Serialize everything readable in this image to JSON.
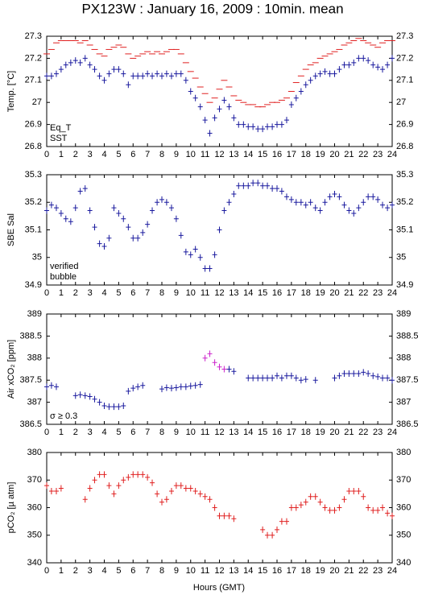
{
  "title": "PX123W : January 16, 2009 : 10min. mean",
  "xlabel": "Hours (GMT)",
  "chart_data": [
    {
      "type": "scatter",
      "ylabel": "Temp. [°C]",
      "legend": "lower left",
      "xlim": [
        0,
        24
      ],
      "xticks": [
        0,
        1,
        2,
        3,
        4,
        5,
        6,
        7,
        8,
        9,
        10,
        11,
        12,
        13,
        14,
        15,
        16,
        17,
        18,
        19,
        20,
        21,
        22,
        23,
        24
      ],
      "ylim": [
        26.8,
        27.3
      ],
      "yticks": [
        26.8,
        26.9,
        27,
        27.1,
        27.2,
        27.3
      ],
      "x": [
        0,
        0.33,
        0.67,
        1,
        1.33,
        1.67,
        2,
        2.33,
        2.67,
        3,
        3.33,
        3.67,
        4,
        4.33,
        4.67,
        5,
        5.33,
        5.67,
        6,
        6.33,
        6.67,
        7,
        7.33,
        7.67,
        8,
        8.33,
        8.67,
        9,
        9.33,
        9.67,
        10,
        10.33,
        10.67,
        11,
        11.33,
        11.67,
        12,
        12.33,
        12.67,
        13,
        13.33,
        13.67,
        14,
        14.33,
        14.67,
        15,
        15.33,
        15.67,
        16,
        16.33,
        16.67,
        17,
        17.33,
        17.67,
        18,
        18.33,
        18.67,
        19,
        19.33,
        19.67,
        20,
        20.33,
        20.67,
        21,
        21.33,
        21.67,
        22,
        22.33,
        22.67,
        23,
        23.33,
        23.67,
        24
      ],
      "series": [
        {
          "name": "Eq_T",
          "color": "#e02020",
          "marker": "dash",
          "values": [
            27.22,
            27.24,
            27.27,
            27.28,
            27.28,
            27.28,
            27.28,
            27.27,
            27.28,
            27.26,
            27.24,
            27.22,
            27.21,
            27.24,
            27.25,
            27.26,
            27.25,
            27.22,
            27.2,
            27.21,
            27.22,
            27.23,
            27.22,
            27.23,
            27.22,
            27.23,
            27.24,
            27.24,
            27.22,
            27.18,
            27.14,
            27.11,
            27.07,
            27.04,
            27.0,
            27.02,
            27.06,
            27.1,
            27.07,
            27.03,
            27.01,
            27.0,
            26.99,
            26.99,
            26.98,
            26.98,
            26.99,
            27.0,
            27.0,
            27.01,
            27.02,
            27.05,
            27.09,
            27.12,
            27.15,
            27.17,
            27.18,
            27.2,
            27.21,
            27.22,
            27.23,
            27.24,
            27.26,
            27.27,
            27.28,
            27.29,
            27.28,
            27.27,
            27.26,
            27.25,
            27.27,
            27.28,
            27.28
          ]
        },
        {
          "name": "SST",
          "color": "#1a1a9e",
          "marker": "plus",
          "values": [
            27.12,
            27.12,
            27.13,
            27.15,
            27.17,
            27.18,
            27.19,
            27.18,
            27.2,
            27.17,
            27.15,
            27.12,
            27.1,
            27.13,
            27.15,
            27.15,
            27.13,
            27.08,
            27.12,
            27.12,
            27.12,
            27.13,
            27.12,
            27.13,
            27.12,
            27.13,
            27.12,
            27.13,
            27.13,
            27.1,
            27.05,
            27.02,
            26.98,
            26.92,
            26.86,
            26.93,
            26.97,
            27.01,
            26.98,
            26.93,
            26.9,
            26.9,
            26.89,
            26.89,
            26.88,
            26.88,
            26.89,
            26.89,
            26.9,
            26.9,
            26.92,
            26.99,
            27.02,
            27.05,
            27.08,
            27.1,
            27.12,
            27.13,
            27.14,
            27.13,
            27.13,
            27.15,
            27.17,
            27.17,
            27.18,
            27.2,
            27.2,
            27.19,
            27.17,
            27.16,
            27.15,
            27.17,
            27.2
          ]
        }
      ]
    },
    {
      "type": "scatter",
      "ylabel": "SBE Sal",
      "legend": "lower left",
      "xlim": [
        0,
        24
      ],
      "xticks": [
        0,
        1,
        2,
        3,
        4,
        5,
        6,
        7,
        8,
        9,
        10,
        11,
        12,
        13,
        14,
        15,
        16,
        17,
        18,
        19,
        20,
        21,
        22,
        23,
        24
      ],
      "ylim": [
        34.9,
        35.3
      ],
      "yticks": [
        34.9,
        35,
        35.1,
        35.2,
        35.3
      ],
      "x": [
        0,
        0.33,
        0.67,
        1,
        1.33,
        1.67,
        2,
        2.33,
        2.67,
        3,
        3.33,
        3.67,
        4,
        4.33,
        4.67,
        5,
        5.33,
        5.67,
        6,
        6.33,
        6.67,
        7,
        7.33,
        7.67,
        8,
        8.33,
        8.67,
        9,
        9.33,
        9.67,
        10,
        10.33,
        10.67,
        11,
        11.33,
        11.67,
        12,
        12.33,
        12.67,
        13,
        13.33,
        13.67,
        14,
        14.33,
        14.67,
        15,
        15.33,
        15.67,
        16,
        16.33,
        16.67,
        17,
        17.33,
        17.67,
        18,
        18.33,
        18.67,
        19,
        19.33,
        19.67,
        20,
        20.33,
        20.67,
        21,
        21.33,
        21.67,
        22,
        22.33,
        22.67,
        23,
        23.33,
        23.67,
        24
      ],
      "series": [
        {
          "name": "verified",
          "color": "#1a1a9e",
          "marker": "plus",
          "values": [
            35.17,
            35.19,
            35.18,
            35.16,
            35.14,
            35.13,
            35.18,
            35.24,
            35.25,
            35.17,
            35.11,
            35.05,
            35.04,
            35.07,
            35.18,
            35.16,
            35.14,
            35.11,
            35.07,
            35.07,
            35.09,
            35.12,
            35.17,
            35.2,
            35.21,
            35.2,
            35.18,
            35.14,
            35.08,
            35.02,
            35.01,
            35.03,
            35.0,
            34.96,
            34.96,
            35.01,
            35.1,
            35.17,
            35.2,
            35.23,
            35.26,
            35.26,
            35.26,
            35.27,
            35.27,
            35.26,
            35.26,
            35.25,
            35.25,
            35.24,
            35.22,
            35.21,
            35.2,
            35.2,
            35.19,
            35.2,
            35.18,
            35.17,
            35.2,
            35.22,
            35.23,
            35.22,
            35.19,
            35.17,
            35.16,
            35.18,
            35.2,
            35.22,
            35.22,
            35.21,
            35.19,
            35.18,
            35.19
          ]
        },
        {
          "name": "bubble",
          "color": "#cc22cc",
          "marker": "plus",
          "values": [
            null,
            null,
            null,
            null,
            null,
            null,
            null,
            null,
            null,
            null,
            null,
            null,
            null,
            null,
            null,
            null,
            null,
            null,
            null,
            null,
            null,
            null,
            null,
            null,
            null,
            null,
            null,
            null,
            null,
            null,
            null,
            null,
            null,
            null,
            null,
            null,
            null,
            null,
            null,
            null,
            null,
            null,
            null,
            null,
            null,
            null,
            null,
            null,
            null,
            null,
            null,
            null,
            null,
            null,
            null,
            null,
            null,
            null,
            null,
            null,
            null,
            null,
            null,
            null,
            null,
            null,
            null,
            null,
            null,
            null,
            null,
            null,
            null
          ]
        }
      ]
    },
    {
      "type": "scatter",
      "ylabel": "Air xCO₂ [ppm]",
      "legend": "lower left",
      "xlim": [
        0,
        24
      ],
      "xticks": [
        0,
        1,
        2,
        3,
        4,
        5,
        6,
        7,
        8,
        9,
        10,
        11,
        12,
        13,
        14,
        15,
        16,
        17,
        18,
        19,
        20,
        21,
        22,
        23,
        24
      ],
      "ylim": [
        386.5,
        389
      ],
      "yticks": [
        386.5,
        387,
        387.5,
        388,
        388.5,
        389
      ],
      "x": [
        0,
        0.33,
        0.67,
        1,
        1.33,
        1.67,
        2,
        2.33,
        2.67,
        3,
        3.33,
        3.67,
        4,
        4.33,
        4.67,
        5,
        5.33,
        5.67,
        6,
        6.33,
        6.67,
        7,
        7.33,
        7.67,
        8,
        8.33,
        8.67,
        9,
        9.33,
        9.67,
        10,
        10.33,
        10.67,
        11,
        11.33,
        11.67,
        12,
        12.33,
        12.67,
        13,
        13.33,
        13.67,
        14,
        14.33,
        14.67,
        15,
        15.33,
        15.67,
        16,
        16.33,
        16.67,
        17,
        17.33,
        17.67,
        18,
        18.33,
        18.67,
        19,
        19.33,
        19.67,
        20,
        20.33,
        20.67,
        21,
        21.33,
        21.67,
        22,
        22.33,
        22.67,
        23,
        23.33,
        23.67,
        24
      ],
      "series": [
        {
          "color": "#1a1a9e",
          "marker": "plus",
          "values": [
            387.35,
            387.38,
            387.35,
            null,
            null,
            null,
            387.15,
            387.17,
            387.15,
            387.13,
            387.07,
            387.0,
            386.92,
            386.9,
            386.9,
            386.9,
            386.92,
            387.25,
            387.32,
            387.35,
            387.38,
            null,
            null,
            null,
            387.3,
            387.33,
            387.32,
            387.33,
            387.35,
            387.35,
            387.37,
            387.38,
            387.4,
            null,
            null,
            null,
            null,
            null,
            387.75,
            387.7,
            null,
            null,
            387.55,
            387.55,
            387.55,
            387.55,
            387.55,
            387.55,
            387.6,
            387.55,
            387.6,
            387.6,
            387.55,
            387.5,
            387.52,
            null,
            387.5,
            null,
            null,
            null,
            387.55,
            387.6,
            387.65,
            387.65,
            387.65,
            387.65,
            387.68,
            387.65,
            387.6,
            387.58,
            387.55,
            387.55,
            387.5
          ]
        },
        {
          "name": "σ ≥ 0.3",
          "color": "#cc22cc",
          "marker": "plus",
          "values": [
            null,
            null,
            null,
            null,
            null,
            null,
            null,
            null,
            null,
            null,
            null,
            null,
            null,
            null,
            null,
            null,
            null,
            null,
            null,
            null,
            null,
            null,
            null,
            null,
            null,
            null,
            null,
            null,
            null,
            null,
            null,
            null,
            null,
            388.0,
            388.1,
            387.9,
            387.8,
            387.75,
            null,
            null,
            null,
            null,
            null,
            null,
            null,
            null,
            null,
            null,
            null,
            null,
            null,
            null,
            null,
            null,
            null,
            null,
            null,
            null,
            null,
            null,
            null,
            null,
            null,
            null,
            null,
            null,
            null,
            null,
            null,
            null,
            null,
            null,
            null
          ]
        }
      ]
    },
    {
      "type": "scatter",
      "ylabel": "pCO₂ [µ atm]",
      "xlim": [
        0,
        24
      ],
      "xticks": [
        0,
        1,
        2,
        3,
        4,
        5,
        6,
        7,
        8,
        9,
        10,
        11,
        12,
        13,
        14,
        15,
        16,
        17,
        18,
        19,
        20,
        21,
        22,
        23,
        24
      ],
      "ylim": [
        340,
        380
      ],
      "yticks": [
        340,
        350,
        360,
        370,
        380
      ],
      "x": [
        0,
        0.33,
        0.67,
        1,
        1.33,
        1.67,
        2,
        2.33,
        2.67,
        3,
        3.33,
        3.67,
        4,
        4.33,
        4.67,
        5,
        5.33,
        5.67,
        6,
        6.33,
        6.67,
        7,
        7.33,
        7.67,
        8,
        8.33,
        8.67,
        9,
        9.33,
        9.67,
        10,
        10.33,
        10.67,
        11,
        11.33,
        11.67,
        12,
        12.33,
        12.67,
        13,
        13.33,
        13.67,
        14,
        14.33,
        14.67,
        15,
        15.33,
        15.67,
        16,
        16.33,
        16.67,
        17,
        17.33,
        17.67,
        18,
        18.33,
        18.67,
        19,
        19.33,
        19.67,
        20,
        20.33,
        20.67,
        21,
        21.33,
        21.67,
        22,
        22.33,
        22.67,
        23,
        23.33,
        23.67,
        24
      ],
      "series": [
        {
          "color": "#e02020",
          "marker": "plus",
          "values": [
            368,
            366,
            366,
            367,
            null,
            null,
            null,
            null,
            363,
            367,
            370,
            372,
            372,
            368,
            365,
            368,
            370,
            371,
            372,
            372,
            372,
            371,
            369,
            365,
            362,
            363,
            366,
            368,
            368,
            367,
            367,
            366,
            365,
            364,
            363,
            360,
            357,
            357,
            357,
            356,
            null,
            null,
            null,
            null,
            null,
            352,
            350,
            350,
            352,
            355,
            355,
            360,
            360,
            361,
            362,
            364,
            364,
            362,
            360,
            359,
            359,
            360,
            363,
            366,
            366,
            366,
            364,
            360,
            359,
            359,
            360,
            358,
            357
          ]
        }
      ]
    }
  ]
}
